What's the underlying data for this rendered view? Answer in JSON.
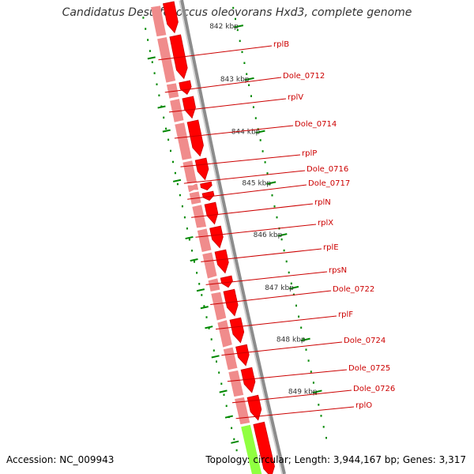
{
  "title": "Candidatus Desulfococcus oleovorans Hxd3, complete genome",
  "accession_text": "Accession: NC_009943",
  "summary_text": "Topology: circular; Length: 3,944,167 bp; Genes: 3,317",
  "colors": {
    "backbone": "#8c8c8c",
    "cds_forward": "#ff0000",
    "cds_forward_outline": "#cc0000",
    "gene_track": "#f08c8c",
    "gene_track_alt": "#90ff40",
    "ruler": "#008800",
    "gene_label": "#cc0000",
    "kbp_label": "#333333"
  },
  "ruler_marks": [
    "842 kbp",
    "843 kbp",
    "844 kbp",
    "845 kbp",
    "846 kbp",
    "847 kbp",
    "848 kbp",
    "849 kbp"
  ],
  "gene_labels": [
    "rplB",
    "Dole_0712",
    "rplV",
    "Dole_0714",
    "rplP",
    "Dole_0716",
    "Dole_0717",
    "rplN",
    "rplX",
    "rplE",
    "rpsN",
    "Dole_0722",
    "rplF",
    "Dole_0724",
    "Dole_0725",
    "Dole_0726",
    "rplO"
  ]
}
